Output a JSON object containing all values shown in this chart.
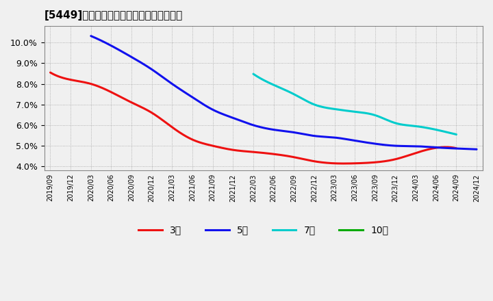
{
  "title": "[5449]　経常利益マージンの平均値の推移",
  "background_color": "#f0f0f0",
  "plot_bg_color": "#f0f0f0",
  "grid_color": "#999999",
  "ylim": [
    0.038,
    0.108
  ],
  "yticks": [
    0.04,
    0.05,
    0.06,
    0.07,
    0.08,
    0.09,
    0.1
  ],
  "series": {
    "3年": {
      "color": "#ee1111",
      "x": [
        "2019/09",
        "2019/12",
        "2020/03",
        "2020/06",
        "2020/09",
        "2020/12",
        "2021/03",
        "2021/06",
        "2021/09",
        "2021/12",
        "2022/03",
        "2022/06",
        "2022/09",
        "2022/12",
        "2023/03",
        "2023/06",
        "2023/09",
        "2023/12",
        "2024/03",
        "2024/06",
        "2024/09"
      ],
      "y": [
        0.0855,
        0.082,
        0.08,
        0.076,
        0.071,
        0.066,
        0.059,
        0.053,
        0.05,
        0.048,
        0.047,
        0.046,
        0.0445,
        0.0425,
        0.0415,
        0.0415,
        0.042,
        0.0435,
        0.0465,
        0.049,
        0.0488
      ]
    },
    "5年": {
      "color": "#1111ee",
      "x": [
        "2020/03",
        "2020/06",
        "2020/09",
        "2020/12",
        "2021/03",
        "2021/06",
        "2021/09",
        "2021/12",
        "2022/03",
        "2022/06",
        "2022/09",
        "2022/12",
        "2023/03",
        "2023/06",
        "2023/09",
        "2023/12",
        "2024/03",
        "2024/06",
        "2024/09",
        "2024/12"
      ],
      "y": [
        0.1032,
        0.0985,
        0.093,
        0.087,
        0.08,
        0.0735,
        0.0675,
        0.0635,
        0.06,
        0.0578,
        0.0565,
        0.0548,
        0.054,
        0.0525,
        0.051,
        0.05,
        0.0498,
        0.0492,
        0.0487,
        0.0483
      ]
    },
    "7年": {
      "color": "#00cccc",
      "x": [
        "2022/03",
        "2022/06",
        "2022/09",
        "2022/12",
        "2023/03",
        "2023/06",
        "2023/09",
        "2023/12",
        "2024/03",
        "2024/06",
        "2024/09"
      ],
      "y": [
        0.0848,
        0.0795,
        0.075,
        0.07,
        0.0678,
        0.0665,
        0.0648,
        0.061,
        0.0595,
        0.0578,
        0.0555
      ]
    },
    "10年": {
      "color": "#00aa00",
      "x": [],
      "y": []
    }
  },
  "xticks": [
    "2019/09",
    "2019/12",
    "2020/03",
    "2020/06",
    "2020/09",
    "2020/12",
    "2021/03",
    "2021/06",
    "2021/09",
    "2021/12",
    "2022/03",
    "2022/06",
    "2022/09",
    "2022/12",
    "2023/03",
    "2023/06",
    "2023/09",
    "2023/12",
    "2024/03",
    "2024/06",
    "2024/09",
    "2024/12"
  ],
  "legend_labels": [
    "3年",
    "5年",
    "7年",
    "10年"
  ],
  "legend_colors": [
    "#ee1111",
    "#1111ee",
    "#00cccc",
    "#00aa00"
  ]
}
